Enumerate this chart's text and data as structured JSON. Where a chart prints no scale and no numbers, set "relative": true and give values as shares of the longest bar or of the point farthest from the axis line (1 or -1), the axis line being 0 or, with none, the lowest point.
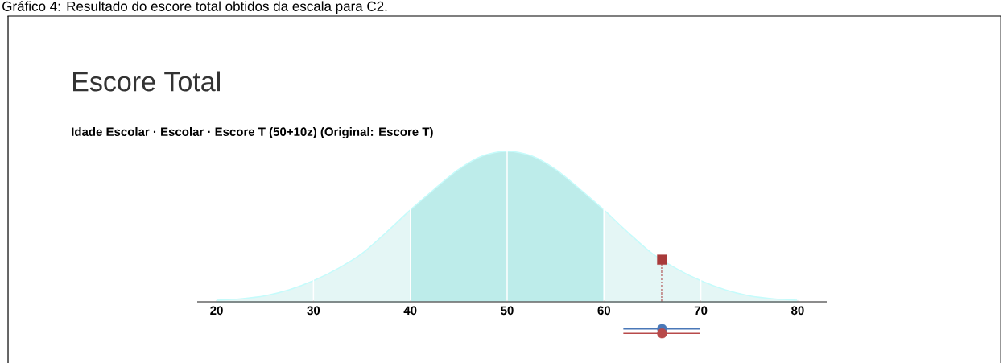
{
  "chart_data": {
    "type": "area",
    "title": "Escore Total",
    "subtitle": "Idade Escolar · Escolar · Escore T (50+10z) (Original: Escore T)",
    "annotations": [
      "Gráfico 4: Resultado do escore total obtidos da escala para C2."
    ],
    "relative": true,
    "xlim": [
      18,
      83
    ],
    "xticks": [
      20,
      30,
      40,
      50,
      60,
      70,
      80
    ],
    "grid": "x",
    "bands": [
      {
        "axis": "x",
        "from": 40,
        "to": 60,
        "color": "#bdecea"
      }
    ],
    "series": [
      {
        "type": "area",
        "color": "#e4f6f5",
        "marker": "none",
        "x": [
          20,
          22.5,
          25,
          27.5,
          30,
          32.5,
          35,
          37.5,
          40,
          42.5,
          45,
          47.5,
          50,
          52.5,
          55,
          57.5,
          60,
          62.5,
          65,
          67.5,
          70,
          72.5,
          75,
          77.5,
          80
        ],
        "values": [
          0.01,
          0.02,
          0.04,
          0.08,
          0.14,
          0.22,
          0.32,
          0.46,
          0.61,
          0.75,
          0.88,
          0.97,
          1.0,
          0.97,
          0.88,
          0.75,
          0.61,
          0.46,
          0.32,
          0.22,
          0.14,
          0.08,
          0.04,
          0.02,
          0.01
        ]
      },
      {
        "type": "line",
        "color": "#a83a3a",
        "marker": "none",
        "line_style": "dashed",
        "x": [
          66,
          66
        ],
        "values": [
          0,
          0.28
        ]
      },
      {
        "type": "scatter",
        "color": "#a83a3a",
        "marker": "square",
        "x": [
          66
        ],
        "values": [
          0.28
        ]
      },
      {
        "type": "scatter",
        "color": "#4a78b8",
        "marker": "circle",
        "x": [
          66
        ],
        "values": [
          -0.18
        ],
        "xerrors": [
          4
        ]
      },
      {
        "type": "scatter",
        "color": "#b84a4a",
        "marker": "circle",
        "x": [
          66
        ],
        "values": [
          -0.21
        ],
        "xerrors": [
          4
        ]
      }
    ]
  }
}
